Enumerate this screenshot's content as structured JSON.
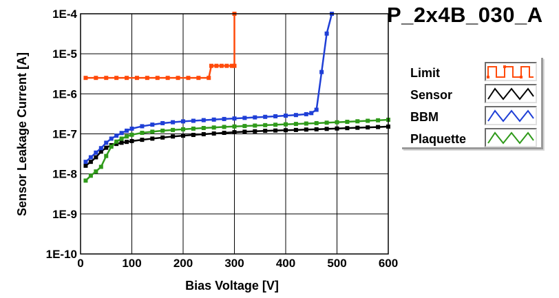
{
  "chart_data": {
    "type": "line",
    "title": "P_2x4B_030_A",
    "xlabel": "Bias Voltage [V]",
    "ylabel": "Sensor Leakage Current [A]",
    "xlim": [
      0,
      600
    ],
    "ylim": [
      1e-10,
      0.0001
    ],
    "yscale": "log",
    "grid": true,
    "legend_position": "right",
    "xticks": [
      "0",
      "100",
      "200",
      "300",
      "400",
      "500",
      "600"
    ],
    "yticks": [
      "1E-10",
      "1E-9",
      "1E-8",
      "1E-7",
      "1E-6",
      "1E-5",
      "1E-4"
    ],
    "series": [
      {
        "name": "Limit",
        "color": "#ff4a0a",
        "x": [
          10,
          30,
          50,
          70,
          90,
          110,
          130,
          150,
          170,
          190,
          210,
          230,
          250,
          255,
          265,
          275,
          285,
          295,
          300,
          300
        ],
        "y": [
          2.5e-06,
          2.5e-06,
          2.5e-06,
          2.5e-06,
          2.5e-06,
          2.5e-06,
          2.5e-06,
          2.5e-06,
          2.5e-06,
          2.5e-06,
          2.5e-06,
          2.5e-06,
          2.5e-06,
          5e-06,
          5e-06,
          5e-06,
          5e-06,
          5e-06,
          5e-06,
          0.0001
        ]
      },
      {
        "name": "Sensor",
        "color": "#000000",
        "x": [
          10,
          20,
          30,
          40,
          50,
          60,
          70,
          80,
          90,
          100,
          120,
          140,
          160,
          180,
          200,
          220,
          240,
          260,
          280,
          300,
          320,
          340,
          360,
          380,
          400,
          420,
          440,
          460,
          480,
          500,
          520,
          540,
          560,
          580,
          600
        ],
        "y": [
          1.6e-08,
          2e-08,
          2.6e-08,
          3.6e-08,
          4.5e-08,
          5.2e-08,
          5.6e-08,
          6e-08,
          6.3e-08,
          6.6e-08,
          7.1e-08,
          7.6e-08,
          8.1e-08,
          8.6e-08,
          9e-08,
          9.4e-08,
          9.8e-08,
          1.02e-07,
          1.06e-07,
          1.1e-07,
          1.13e-07,
          1.16e-07,
          1.19e-07,
          1.21e-07,
          1.23e-07,
          1.25e-07,
          1.28e-07,
          1.3e-07,
          1.33e-07,
          1.36e-07,
          1.39e-07,
          1.42e-07,
          1.45e-07,
          1.48e-07,
          1.52e-07
        ]
      },
      {
        "name": "BBM",
        "color": "#1f3fd6",
        "x": [
          10,
          20,
          30,
          40,
          50,
          60,
          70,
          80,
          90,
          100,
          120,
          140,
          160,
          180,
          200,
          220,
          240,
          260,
          280,
          300,
          320,
          340,
          360,
          380,
          400,
          420,
          440,
          450,
          460,
          470,
          480,
          490
        ],
        "y": [
          2e-08,
          2.6e-08,
          3.4e-08,
          4.4e-08,
          6e-08,
          7.6e-08,
          9e-08,
          1.05e-07,
          1.2e-07,
          1.35e-07,
          1.55e-07,
          1.7e-07,
          1.85e-07,
          1.95e-07,
          2.05e-07,
          2.12e-07,
          2.2e-07,
          2.27e-07,
          2.35e-07,
          2.42e-07,
          2.5e-07,
          2.58e-07,
          2.66e-07,
          2.75e-07,
          2.85e-07,
          2.95e-07,
          3.1e-07,
          3.3e-07,
          4e-07,
          3.5e-06,
          3.2e-05,
          0.0001
        ]
      },
      {
        "name": "Plaquette",
        "color": "#2f9a1a",
        "x": [
          10,
          20,
          30,
          40,
          50,
          60,
          70,
          80,
          90,
          100,
          120,
          140,
          160,
          180,
          200,
          220,
          240,
          260,
          280,
          300,
          320,
          340,
          360,
          380,
          400,
          420,
          440,
          460,
          480,
          500,
          520,
          540,
          560,
          580,
          600
        ],
        "y": [
          6.8e-09,
          9e-09,
          1.15e-08,
          1.5e-08,
          2.8e-08,
          4.8e-08,
          6.4e-08,
          7.6e-08,
          8.6e-08,
          9.5e-08,
          1.06e-07,
          1.13e-07,
          1.2e-07,
          1.25e-07,
          1.3e-07,
          1.35e-07,
          1.4e-07,
          1.44e-07,
          1.49e-07,
          1.53e-07,
          1.57e-07,
          1.61e-07,
          1.65e-07,
          1.69e-07,
          1.73e-07,
          1.77e-07,
          1.81e-07,
          1.85e-07,
          1.9e-07,
          1.95e-07,
          2e-07,
          2.06e-07,
          2.12e-07,
          2.18e-07,
          2.25e-07
        ]
      }
    ]
  }
}
